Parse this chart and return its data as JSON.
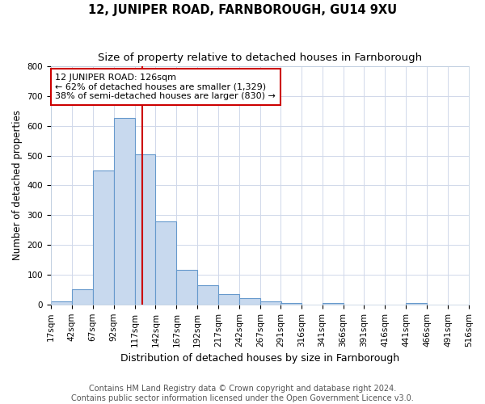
{
  "title": "12, JUNIPER ROAD, FARNBOROUGH, GU14 9XU",
  "subtitle": "Size of property relative to detached houses in Farnborough",
  "xlabel": "Distribution of detached houses by size in Farnborough",
  "ylabel": "Number of detached properties",
  "bin_edges": [
    17,
    42,
    67,
    92,
    117,
    142,
    167,
    192,
    217,
    242,
    267,
    291,
    316,
    341,
    366,
    391,
    416,
    441,
    466,
    491,
    516
  ],
  "bar_heights": [
    10,
    50,
    450,
    625,
    505,
    280,
    115,
    65,
    35,
    20,
    10,
    5,
    0,
    5,
    0,
    0,
    0,
    5,
    0,
    0
  ],
  "bar_color": "#c8d9ee",
  "bar_edge_color": "#6699cc",
  "property_size": 126,
  "vline_color": "#cc0000",
  "annotation_line1": "12 JUNIPER ROAD: 126sqm",
  "annotation_line2": "← 62% of detached houses are smaller (1,329)",
  "annotation_line3": "38% of semi-detached houses are larger (830) →",
  "annotation_box_color": "#ffffff",
  "annotation_border_color": "#cc0000",
  "ylim": [
    0,
    800
  ],
  "yticks": [
    0,
    100,
    200,
    300,
    400,
    500,
    600,
    700,
    800
  ],
  "xtick_labels": [
    "17sqm",
    "42sqm",
    "67sqm",
    "92sqm",
    "117sqm",
    "142sqm",
    "167sqm",
    "192sqm",
    "217sqm",
    "242sqm",
    "267sqm",
    "291sqm",
    "316sqm",
    "341sqm",
    "366sqm",
    "391sqm",
    "416sqm",
    "441sqm",
    "466sqm",
    "491sqm",
    "516sqm"
  ],
  "footer_line1": "Contains HM Land Registry data © Crown copyright and database right 2024.",
  "footer_line2": "Contains public sector information licensed under the Open Government Licence v3.0.",
  "background_color": "#ffffff",
  "grid_color": "#d0d8ea",
  "title_fontsize": 10.5,
  "subtitle_fontsize": 9.5,
  "xlabel_fontsize": 9,
  "ylabel_fontsize": 8.5,
  "tick_fontsize": 7.5,
  "annotation_fontsize": 8,
  "footer_fontsize": 7
}
